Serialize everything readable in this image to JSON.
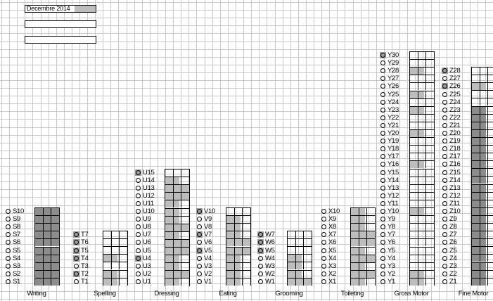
{
  "legend": {
    "month": "Decembre 2014"
  },
  "columns": [
    {
      "key": "writing",
      "caption": "Writing",
      "prefix": "S",
      "levels": 10,
      "marked": [],
      "shade": [
        [
          1,
          2
        ],
        [
          2,
          3
        ],
        [
          3,
          3
        ],
        [
          4,
          3
        ],
        [
          5,
          3
        ],
        [
          6,
          3
        ],
        [
          7,
          3
        ],
        [
          8,
          3
        ],
        [
          9,
          3
        ],
        [
          10,
          3
        ]
      ],
      "dark": [
        1,
        2,
        3,
        4,
        5,
        6,
        7,
        8,
        9,
        10
      ]
    },
    {
      "key": "spelling",
      "caption": "Spelling",
      "prefix": "T",
      "levels": 7,
      "marked": [
        2,
        4,
        5,
        6,
        7
      ],
      "shade": [
        [
          1,
          1
        ],
        [
          2,
          1
        ],
        [
          3,
          0
        ],
        [
          4,
          1
        ],
        [
          5,
          0
        ],
        [
          6,
          0
        ],
        [
          7,
          0
        ]
      ],
      "dark": []
    },
    {
      "key": "dressing",
      "caption": "Dressing",
      "prefix": "U",
      "levels": 15,
      "marked": [
        4,
        15
      ],
      "shade": [
        [
          1,
          1
        ],
        [
          2,
          2
        ],
        [
          3,
          1
        ],
        [
          4,
          1
        ],
        [
          5,
          2
        ],
        [
          6,
          2
        ],
        [
          7,
          1
        ],
        [
          8,
          2
        ],
        [
          9,
          1
        ],
        [
          10,
          1
        ],
        [
          11,
          1
        ],
        [
          12,
          2
        ],
        [
          13,
          2
        ],
        [
          14,
          1
        ],
        [
          15,
          0
        ]
      ],
      "dark": []
    },
    {
      "key": "eating",
      "caption": "Eating",
      "prefix": "V",
      "levels": 10,
      "marked": [
        5,
        7,
        10
      ],
      "shade": [
        [
          1,
          1
        ],
        [
          2,
          1
        ],
        [
          3,
          1
        ],
        [
          4,
          1
        ],
        [
          5,
          2
        ],
        [
          6,
          2
        ],
        [
          7,
          1
        ],
        [
          8,
          1
        ],
        [
          9,
          1
        ],
        [
          10,
          0
        ]
      ],
      "dark": []
    },
    {
      "key": "grooming",
      "caption": "Grooming",
      "prefix": "W",
      "levels": 7,
      "marked": [
        5,
        6,
        7
      ],
      "shade": [
        [
          1,
          2
        ],
        [
          2,
          1
        ],
        [
          3,
          1
        ],
        [
          4,
          1
        ],
        [
          5,
          0
        ],
        [
          6,
          0
        ],
        [
          7,
          0
        ]
      ],
      "dark": []
    },
    {
      "key": "toileting",
      "caption": "Toileting",
      "prefix": "X",
      "levels": 10,
      "marked": [],
      "shade": [
        [
          1,
          1
        ],
        [
          2,
          2
        ],
        [
          3,
          1
        ],
        [
          4,
          2
        ],
        [
          5,
          1
        ],
        [
          6,
          2
        ],
        [
          7,
          2
        ],
        [
          8,
          1
        ],
        [
          9,
          1
        ],
        [
          10,
          1
        ]
      ],
      "dark": []
    },
    {
      "key": "gross-motor",
      "caption": "Gross Motor",
      "prefix": "Y",
      "levels": 30,
      "marked": [
        30
      ],
      "shade": [
        [
          1,
          1
        ],
        [
          2,
          1
        ],
        [
          3,
          0
        ],
        [
          4,
          0
        ],
        [
          5,
          0
        ],
        [
          6,
          0
        ],
        [
          7,
          0
        ],
        [
          8,
          0
        ],
        [
          9,
          0
        ],
        [
          10,
          1
        ],
        [
          11,
          0
        ],
        [
          12,
          0
        ],
        [
          13,
          0
        ],
        [
          14,
          0
        ],
        [
          15,
          0
        ],
        [
          16,
          1
        ],
        [
          17,
          0
        ],
        [
          18,
          0
        ],
        [
          19,
          0
        ],
        [
          20,
          1
        ],
        [
          21,
          0
        ],
        [
          22,
          0
        ],
        [
          23,
          1
        ],
        [
          24,
          0
        ],
        [
          25,
          1
        ],
        [
          26,
          0
        ],
        [
          27,
          0
        ],
        [
          28,
          1
        ],
        [
          29,
          0
        ],
        [
          30,
          0
        ]
      ],
      "dark": []
    },
    {
      "key": "fine-motor",
      "caption": "Fine Motor",
      "prefix": "Z",
      "levels": 28,
      "marked": [
        26,
        28
      ],
      "shade": [
        [
          1,
          1
        ],
        [
          2,
          1
        ],
        [
          3,
          1
        ],
        [
          4,
          1
        ],
        [
          5,
          1
        ],
        [
          6,
          1
        ],
        [
          7,
          1
        ],
        [
          8,
          1
        ],
        [
          9,
          1
        ],
        [
          10,
          1
        ],
        [
          11,
          1
        ],
        [
          12,
          1
        ],
        [
          13,
          1
        ],
        [
          14,
          1
        ],
        [
          15,
          1
        ],
        [
          16,
          1
        ],
        [
          17,
          1
        ],
        [
          18,
          1
        ],
        [
          19,
          1
        ],
        [
          20,
          1
        ],
        [
          21,
          1
        ],
        [
          22,
          1
        ],
        [
          23,
          1
        ],
        [
          24,
          0
        ],
        [
          25,
          0
        ],
        [
          26,
          1
        ],
        [
          27,
          0
        ],
        [
          28,
          0
        ]
      ],
      "dark": [
        1,
        2,
        3,
        4,
        5,
        6,
        7,
        8,
        9,
        10,
        11,
        12,
        13,
        14,
        15,
        16,
        17,
        18,
        19,
        20,
        21,
        22,
        23
      ]
    }
  ],
  "colors": {
    "grid": "#c8c8c8",
    "shade": "#bdbdbd",
    "dark": "#8c8c8c",
    "marker": "#9e9e9e"
  }
}
